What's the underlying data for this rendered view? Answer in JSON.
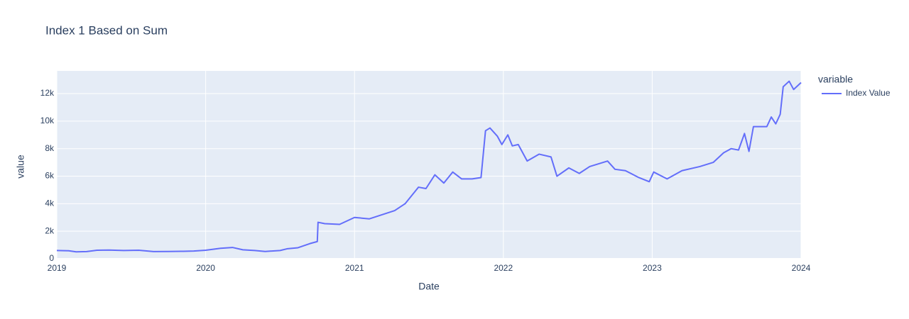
{
  "chart_data": {
    "type": "line",
    "title": "Index 1 Based on Sum",
    "x_label": "Date",
    "y_label": "value",
    "legend_title": "variable",
    "legend_position": "right",
    "grid": true,
    "x": [
      2019.0,
      2019.08,
      2019.13,
      2019.2,
      2019.27,
      2019.35,
      2019.45,
      2019.55,
      2019.65,
      2019.75,
      2019.85,
      2019.92,
      2020.0,
      2020.1,
      2020.18,
      2020.25,
      2020.33,
      2020.4,
      2020.5,
      2020.55,
      2020.62,
      2020.7,
      2020.75,
      2020.755,
      2020.8,
      2020.9,
      2021.0,
      2021.1,
      2021.27,
      2021.34,
      2021.43,
      2021.48,
      2021.54,
      2021.6,
      2021.66,
      2021.72,
      2021.79,
      2021.85,
      2021.88,
      2021.91,
      2021.96,
      2021.99,
      2022.03,
      2022.06,
      2022.1,
      2022.16,
      2022.24,
      2022.32,
      2022.36,
      2022.44,
      2022.51,
      2022.58,
      2022.7,
      2022.75,
      2022.82,
      2022.91,
      2022.98,
      2023.01,
      2023.1,
      2023.2,
      2023.32,
      2023.41,
      2023.48,
      2023.53,
      2023.58,
      2023.62,
      2023.65,
      2023.68,
      2023.77,
      2023.8,
      2023.83,
      2023.86,
      2023.88,
      2023.92,
      2023.95,
      2024.0
    ],
    "series": [
      {
        "name": "Index Value",
        "color": "#636efa",
        "values": [
          600,
          580,
          500,
          520,
          620,
          630,
          600,
          620,
          520,
          530,
          540,
          560,
          620,
          760,
          820,
          650,
          600,
          530,
          600,
          730,
          800,
          1100,
          1250,
          2650,
          2550,
          2500,
          3000,
          2900,
          3500,
          4000,
          5200,
          5100,
          6100,
          5500,
          6300,
          5800,
          5800,
          5900,
          9300,
          9500,
          8900,
          8300,
          9000,
          8200,
          8300,
          7100,
          7600,
          7400,
          6000,
          6600,
          6200,
          6700,
          7100,
          6500,
          6400,
          5900,
          5600,
          6300,
          5800,
          6400,
          6700,
          7000,
          7700,
          8000,
          7900,
          9100,
          7800,
          9600,
          9600,
          10300,
          9800,
          10500,
          12500,
          12900,
          12300,
          12800
        ]
      }
    ],
    "xlim": [
      2019,
      2024
    ],
    "xticks": [
      2019,
      2020,
      2021,
      2022,
      2023,
      2024
    ],
    "ylim": [
      0,
      13650
    ],
    "yticks": [
      0,
      {
        "value": 2000,
        "label": "2k"
      },
      {
        "value": 4000,
        "label": "4k"
      },
      {
        "value": 6000,
        "label": "6k"
      },
      {
        "value": 8000,
        "label": "8k"
      },
      {
        "value": 10000,
        "label": "10k"
      },
      {
        "value": 12000,
        "label": "12k"
      }
    ]
  }
}
